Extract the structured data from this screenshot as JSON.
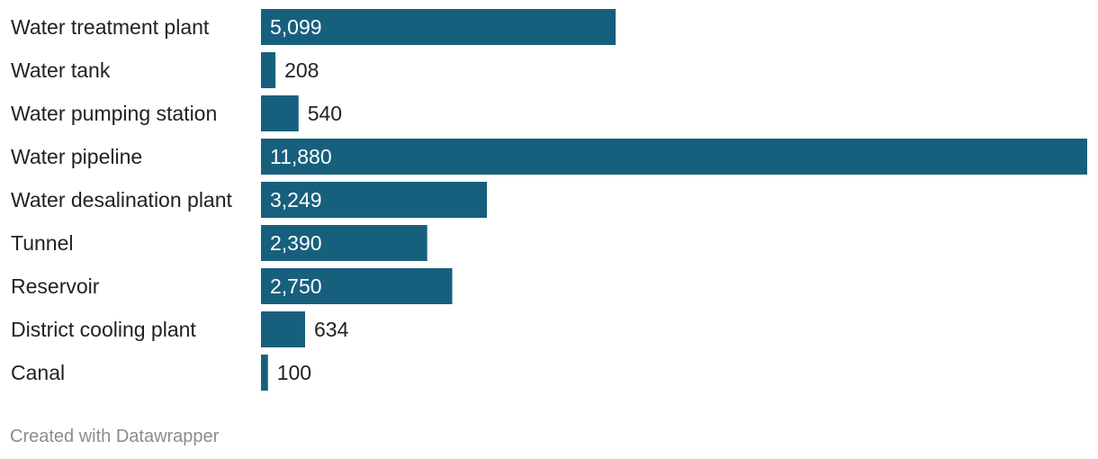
{
  "chart_data": {
    "type": "bar",
    "orientation": "horizontal",
    "categories": [
      "Water treatment plant",
      "Water tank",
      "Water pumping station",
      "Water pipeline",
      "Water desalination plant",
      "Tunnel",
      "Reservoir",
      "District cooling plant",
      "Canal"
    ],
    "values": [
      5099,
      208,
      540,
      11880,
      3249,
      2390,
      2750,
      634,
      100
    ],
    "value_labels": [
      "5,099",
      "208",
      "540",
      "11,880",
      "3,249",
      "2,390",
      "2,750",
      "634",
      "100"
    ],
    "xlim": [
      0,
      11880
    ],
    "grid": false,
    "legend": "none",
    "bar_color": "#17607d",
    "label_inside_color": "#ffffff",
    "label_outside_color": "#222222"
  },
  "footer": {
    "credit": "Created with Datawrapper",
    "credit_color": "#8c8c8c"
  }
}
